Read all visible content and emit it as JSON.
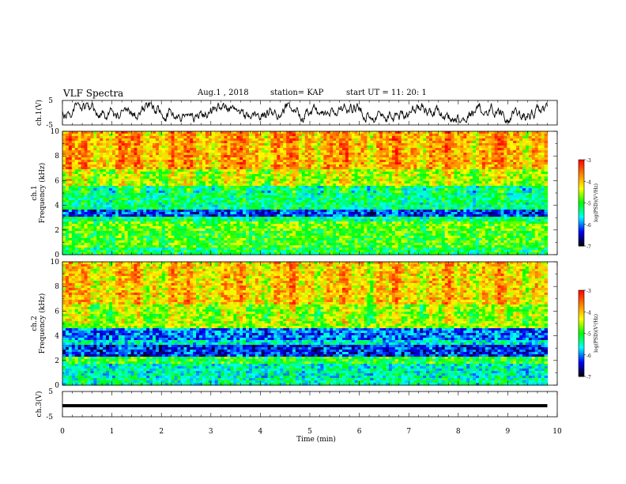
{
  "header": {
    "title": "VLF Spectra",
    "date": "Aug.1  , 2018",
    "station": "station= KAP",
    "start_ut": "start  UT =   11: 20: 1"
  },
  "chart_data": [
    {
      "type": "line",
      "panel": "ch1-waveform",
      "ylabel": "ch.1(V)",
      "ylim": [
        -5,
        5
      ],
      "yticks": [
        "5",
        "-5"
      ],
      "xlim": [
        0,
        10
      ],
      "note": "noisy waveform centred near 0 V, dense black trace from 0 to ~9.8 min"
    },
    {
      "type": "heatmap",
      "panel": "ch1-spectrogram",
      "ylabel": "ch.1\nFrequency (kHz)",
      "ylim": [
        0,
        10
      ],
      "yticks": [
        "0",
        "2",
        "4",
        "6",
        "8",
        "10"
      ],
      "xlim": [
        0,
        10
      ],
      "data_extent_min": 9.8,
      "colorbar": {
        "label": "log(PSD)(V²/Hz)",
        "range": [
          -7,
          -3
        ],
        "ticks": [
          "-3",
          "-4",
          "-5",
          "-6",
          "-7"
        ],
        "colors": [
          "#000000",
          "#0000ff",
          "#00ffff",
          "#00ff00",
          "#ffff00",
          "#ff8000",
          "#ff0000",
          "#ffffff"
        ]
      },
      "bands": [
        {
          "f_min": 0,
          "f_max": 0.6,
          "level": -5.2
        },
        {
          "f_min": 0.6,
          "f_max": 1.9,
          "level": -4.9
        },
        {
          "f_min": 1.9,
          "f_max": 2.6,
          "level": -4.8
        },
        {
          "f_min": 2.6,
          "f_max": 3.0,
          "level": -5.3
        },
        {
          "f_min": 3.0,
          "f_max": 3.6,
          "level": -6.2
        },
        {
          "f_min": 3.6,
          "f_max": 5.6,
          "level": -5.3
        },
        {
          "f_min": 5.6,
          "f_max": 7.0,
          "level": -4.5
        },
        {
          "f_min": 7.0,
          "f_max": 10.0,
          "level": -3.9
        }
      ]
    },
    {
      "type": "heatmap",
      "panel": "ch2-spectrogram",
      "ylabel": "ch.2\nFrequency (kHz)",
      "ylim": [
        0,
        10
      ],
      "yticks": [
        "0",
        "2",
        "4",
        "6",
        "8",
        "10"
      ],
      "xlim": [
        0,
        10
      ],
      "data_extent_min": 9.8,
      "colorbar": {
        "label": "log(PSD)(V²/Hz)",
        "range": [
          -7,
          -3
        ],
        "ticks": [
          "-3",
          "-4",
          "-5",
          "-6",
          "-7"
        ],
        "colors": [
          "#000000",
          "#0000ff",
          "#00ffff",
          "#00ff00",
          "#ffff00",
          "#ff8000",
          "#ff0000",
          "#ffffff"
        ]
      },
      "bands": [
        {
          "f_min": 0,
          "f_max": 0.6,
          "level": -5.4
        },
        {
          "f_min": 0.6,
          "f_max": 1.7,
          "level": -5.5
        },
        {
          "f_min": 1.7,
          "f_max": 2.4,
          "level": -5.0
        },
        {
          "f_min": 2.4,
          "f_max": 3.2,
          "level": -6.3
        },
        {
          "f_min": 3.2,
          "f_max": 3.6,
          "level": -5.6
        },
        {
          "f_min": 3.6,
          "f_max": 4.6,
          "level": -6.0
        },
        {
          "f_min": 4.6,
          "f_max": 6.5,
          "level": -4.6
        },
        {
          "f_min": 6.5,
          "f_max": 10.0,
          "level": -4.1
        }
      ]
    },
    {
      "type": "line",
      "panel": "ch3-waveform",
      "ylabel": "ch.3(V)",
      "ylim": [
        -5,
        5
      ],
      "yticks": [
        "5",
        "-5"
      ],
      "xlim": [
        0,
        10
      ],
      "constant_value": 0,
      "note": "flat thick black line near 0 V"
    }
  ],
  "x_axis": {
    "label": "Time  (min)",
    "ticks": [
      "0",
      "1",
      "2",
      "3",
      "4",
      "5",
      "6",
      "7",
      "8",
      "9",
      "10"
    ]
  }
}
